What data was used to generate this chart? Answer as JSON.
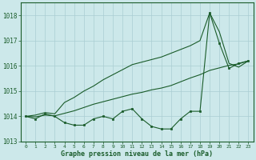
{
  "xlabel": "Graphe pression niveau de la mer (hPa)",
  "ylim": [
    1013.0,
    1018.5
  ],
  "xlim": [
    -0.5,
    23.5
  ],
  "yticks": [
    1013,
    1014,
    1015,
    1016,
    1017,
    1018
  ],
  "xticks": [
    0,
    1,
    2,
    3,
    4,
    5,
    6,
    7,
    8,
    9,
    10,
    11,
    12,
    13,
    14,
    15,
    16,
    17,
    18,
    19,
    20,
    21,
    22,
    23
  ],
  "bg_color": "#cce8ea",
  "grid_color": "#aacdd2",
  "line_color": "#1a5c2a",
  "x": [
    0,
    1,
    2,
    3,
    4,
    5,
    6,
    7,
    8,
    9,
    10,
    11,
    12,
    13,
    14,
    15,
    16,
    17,
    18,
    19,
    20,
    21,
    22,
    23
  ],
  "y_main": [
    1014.0,
    1013.9,
    1014.1,
    1014.0,
    1013.75,
    1013.65,
    1013.65,
    1013.9,
    1014.0,
    1013.9,
    1014.2,
    1014.3,
    1013.9,
    1013.6,
    1013.5,
    1013.5,
    1013.9,
    1014.2,
    1014.2,
    1018.1,
    1016.9,
    1015.9,
    1016.1,
    1016.2
  ],
  "y_upper": [
    1014.0,
    1014.05,
    1014.15,
    1014.1,
    1014.55,
    1014.75,
    1015.0,
    1015.2,
    1015.45,
    1015.65,
    1015.85,
    1016.05,
    1016.15,
    1016.25,
    1016.35,
    1016.5,
    1016.65,
    1016.8,
    1017.0,
    1018.1,
    1017.35,
    1016.1,
    1015.95,
    1016.2
  ],
  "y_lower": [
    1014.0,
    1013.98,
    1014.05,
    1014.02,
    1014.12,
    1014.22,
    1014.35,
    1014.48,
    1014.58,
    1014.68,
    1014.78,
    1014.88,
    1014.95,
    1015.05,
    1015.12,
    1015.22,
    1015.37,
    1015.52,
    1015.65,
    1015.82,
    1015.92,
    1016.02,
    1016.08,
    1016.2
  ]
}
